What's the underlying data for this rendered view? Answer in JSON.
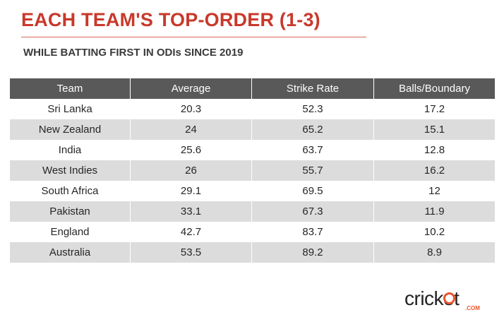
{
  "title": "EACH TEAM'S TOP-ORDER (1-3)",
  "subtitle": "WHILE BATTING FIRST IN ODIs SINCE 2019",
  "chart_data": {
    "type": "table",
    "columns": [
      "Team",
      "Average",
      "Strike Rate",
      "Balls/Boundary"
    ],
    "rows": [
      [
        "Sri Lanka",
        "20.3",
        "52.3",
        "17.2"
      ],
      [
        "New Zealand",
        "24",
        "65.2",
        "15.1"
      ],
      [
        "India",
        "25.6",
        "63.7",
        "12.8"
      ],
      [
        "West Indies",
        "26",
        "55.7",
        "16.2"
      ],
      [
        "South Africa",
        "29.1",
        "69.5",
        "12"
      ],
      [
        "Pakistan",
        "33.1",
        "67.3",
        "11.9"
      ],
      [
        "England",
        "42.7",
        "83.7",
        "10.2"
      ],
      [
        "Australia",
        "53.5",
        "89.2",
        "8.9"
      ]
    ]
  },
  "logo": {
    "text": "cricket",
    "suffix": ".COM",
    "accent_color": "#e9552c"
  },
  "colors": {
    "title": "#c8392b",
    "header_bg": "#595959",
    "stripe": "#dcdcdc"
  }
}
